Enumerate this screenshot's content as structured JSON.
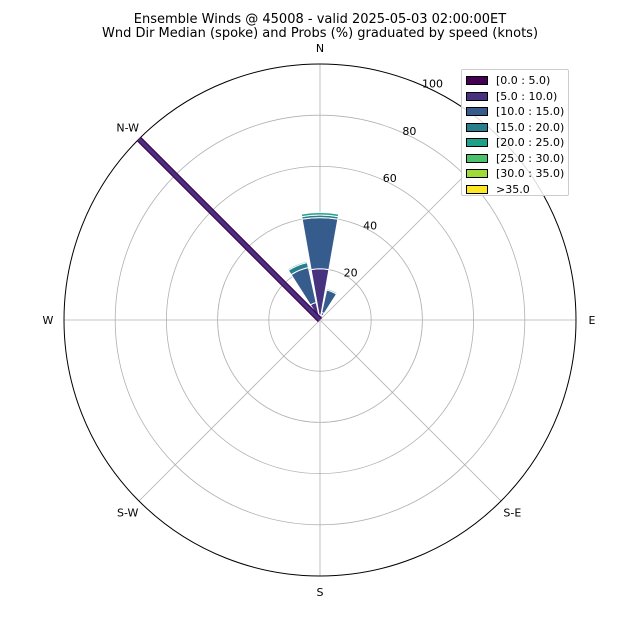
{
  "title_line1": "Ensemble Winds @ 45008 - valid 2025-05-03 02:00:00ET",
  "title_line2": "Wnd Dir Median (spoke) and Probs (%) graduated by speed (knots)",
  "chart_data": {
    "type": "windrose",
    "title": "Ensemble Winds @ 45008 - valid 2025-05-03 02:00:00ET",
    "subtitle": "Wnd Dir Median (spoke) and Probs (%) graduated by speed (knots)",
    "direction_labels": [
      "N",
      "N-W",
      "W",
      "S-W",
      "S",
      "S-E",
      "E"
    ],
    "r_ticks": [
      20,
      40,
      60,
      80,
      100
    ],
    "r_range": [
      0,
      100
    ],
    "grid": true,
    "legend_position": "top-right",
    "speed_bins": [
      {
        "label": "[0.0 : 5.0)",
        "color": "#440154"
      },
      {
        "label": "[5.0 : 10.0)",
        "color": "#46327e"
      },
      {
        "label": "[10.0 : 15.0)",
        "color": "#365c8d"
      },
      {
        "label": "[15.0 : 20.0)",
        "color": "#277f8e"
      },
      {
        "label": "[20.0 : 25.0)",
        "color": "#1fa187"
      },
      {
        "label": "[25.0 : 30.0)",
        "color": "#4ac16d"
      },
      {
        "label": "[30.0 : 35.0)",
        "color": "#a0da39"
      },
      {
        "label": ">35.0",
        "color": "#fde725"
      }
    ],
    "sectors": [
      {
        "direction_deg": 0,
        "stack": [
          2,
          20,
          40,
          41,
          42
        ]
      },
      {
        "direction_deg": 22.5,
        "stack": [
          2,
          3,
          12,
          12.5
        ]
      },
      {
        "direction_deg": -22.5,
        "stack": [
          2,
          7,
          21,
          23,
          23.5
        ]
      },
      {
        "direction_deg": -45,
        "stack": [
          1
        ]
      }
    ],
    "median_spoke": {
      "direction_deg": -45,
      "length": 100,
      "color": "#46327e"
    }
  }
}
